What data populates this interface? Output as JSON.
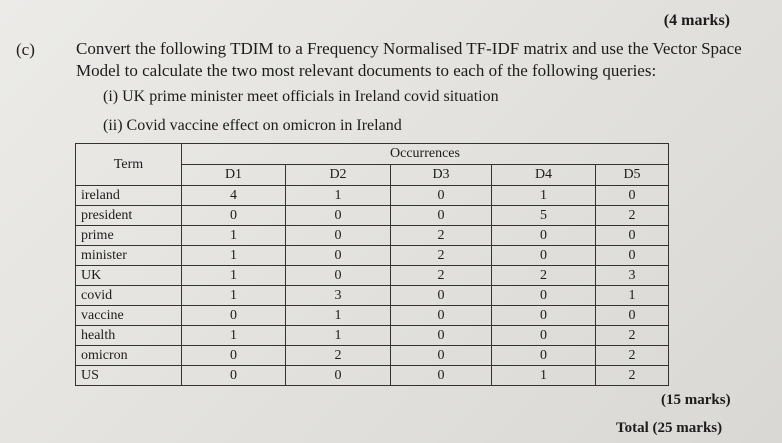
{
  "header": {
    "marks": "(4 marks)",
    "part": "(c)"
  },
  "question": {
    "lines": [
      "Convert the following TDIM to a Frequency Normalised TF-IDF matrix and use the Vector Space",
      "Model to calculate the two most relevant documents to each of the following queries:"
    ],
    "queries": [
      "(i) UK prime minister meet officials in Ireland covid situation",
      "(ii) Covid vaccine effect on omicron in Ireland"
    ]
  },
  "table": {
    "term_header": "Term",
    "group_header": "Occurrences",
    "columns": [
      "D1",
      "D2",
      "D3",
      "D4",
      "D5"
    ],
    "rows": [
      {
        "term": "ireland",
        "counts": [
          4,
          1,
          0,
          1,
          0
        ]
      },
      {
        "term": "president",
        "counts": [
          0,
          0,
          0,
          5,
          2
        ]
      },
      {
        "term": "prime",
        "counts": [
          1,
          0,
          2,
          0,
          0
        ]
      },
      {
        "term": "minister",
        "counts": [
          1,
          0,
          2,
          0,
          0
        ]
      },
      {
        "term": "UK",
        "counts": [
          1,
          0,
          2,
          2,
          3
        ]
      },
      {
        "term": "covid",
        "counts": [
          1,
          3,
          0,
          0,
          1
        ]
      },
      {
        "term": "vaccine",
        "counts": [
          0,
          1,
          0,
          0,
          0
        ]
      },
      {
        "term": "health",
        "counts": [
          1,
          1,
          0,
          0,
          2
        ]
      },
      {
        "term": "omicron",
        "counts": [
          0,
          2,
          0,
          0,
          2
        ]
      },
      {
        "term": "US",
        "counts": [
          0,
          0,
          0,
          1,
          2
        ]
      }
    ]
  },
  "footer": {
    "marks": "(15 marks)",
    "total": "Total (25 marks)"
  }
}
